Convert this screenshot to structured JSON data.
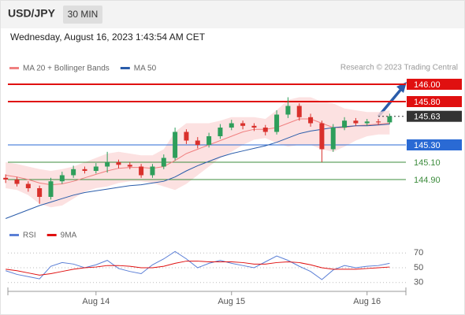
{
  "header": {
    "symbol": "USD/JPY",
    "timeframe": "30 MIN",
    "timestamp": "Wednesday, August 16, 2023 1:43:54 AM CET",
    "source": "Research © 2023 Trading Central"
  },
  "chart_data": [
    {
      "type": "candlestick",
      "open": [
        144.92,
        144.9,
        144.85,
        144.8,
        144.7,
        144.88,
        144.95,
        145.02,
        145.0,
        145.05,
        145.1,
        145.07,
        145.05,
        144.95,
        145.05,
        145.15,
        145.45,
        145.35,
        145.3,
        145.4,
        145.5,
        145.55,
        145.52,
        145.5,
        145.45,
        145.65,
        145.75,
        145.62,
        145.55,
        145.25,
        145.5,
        145.58,
        145.55,
        145.57,
        145.56
      ],
      "high": [
        144.96,
        144.93,
        144.88,
        144.83,
        144.92,
        144.99,
        145.06,
        145.05,
        145.09,
        145.22,
        145.13,
        145.1,
        145.08,
        145.08,
        145.19,
        145.5,
        145.48,
        145.39,
        145.44,
        145.54,
        145.59,
        145.58,
        145.55,
        145.53,
        145.7,
        145.85,
        145.78,
        145.66,
        145.58,
        145.54,
        145.62,
        145.61,
        145.6,
        145.6,
        145.66
      ],
      "low": [
        144.86,
        144.82,
        144.76,
        144.62,
        144.67,
        144.85,
        144.92,
        144.97,
        144.97,
        144.98,
        145.03,
        145.02,
        144.92,
        144.92,
        145.02,
        145.12,
        145.31,
        145.26,
        145.27,
        145.37,
        145.47,
        145.48,
        145.46,
        145.41,
        145.42,
        145.61,
        145.58,
        145.51,
        145.1,
        145.22,
        145.47,
        145.52,
        145.52,
        145.53,
        145.54
      ],
      "close": [
        144.9,
        144.85,
        144.8,
        144.7,
        144.88,
        144.95,
        145.02,
        145.0,
        145.05,
        145.1,
        145.07,
        145.05,
        144.95,
        145.05,
        145.15,
        145.45,
        145.35,
        145.3,
        145.4,
        145.5,
        145.55,
        145.52,
        145.5,
        145.45,
        145.65,
        145.75,
        145.62,
        145.55,
        145.25,
        145.5,
        145.58,
        145.55,
        145.57,
        145.56,
        145.63
      ],
      "up_color": "#2e9e5b",
      "down_color": "#d9302c",
      "series": [
        {
          "name": "MA 20 + Bollinger Bands",
          "color": "#f08080",
          "band_color": "#fbdada",
          "values": [
            144.95,
            144.93,
            144.9,
            144.86,
            144.84,
            144.85,
            144.88,
            144.92,
            144.96,
            145.0,
            145.03,
            145.04,
            145.04,
            145.03,
            145.05,
            145.12,
            145.2,
            145.25,
            145.3,
            145.35,
            145.4,
            145.45,
            145.48,
            145.48,
            145.5,
            145.55,
            145.6,
            145.6,
            145.55,
            145.5,
            145.5,
            145.52,
            145.53,
            145.54,
            145.55
          ],
          "upper": [
            145.1,
            145.08,
            145.05,
            145.02,
            145.0,
            145.02,
            145.05,
            145.1,
            145.15,
            145.2,
            145.22,
            145.2,
            145.18,
            145.18,
            145.25,
            145.45,
            145.55,
            145.55,
            145.55,
            145.58,
            145.62,
            145.62,
            145.62,
            145.6,
            145.7,
            145.82,
            145.85,
            145.85,
            145.8,
            145.78,
            145.72,
            145.7,
            145.68,
            145.68,
            145.7
          ],
          "lower": [
            144.8,
            144.78,
            144.72,
            144.62,
            144.58,
            144.6,
            144.68,
            144.76,
            144.8,
            144.82,
            144.86,
            144.88,
            144.88,
            144.86,
            144.82,
            144.78,
            144.85,
            144.95,
            145.05,
            145.15,
            145.22,
            145.3,
            145.36,
            145.38,
            145.32,
            145.28,
            145.3,
            145.3,
            145.25,
            145.22,
            145.28,
            145.35,
            145.4,
            145.42,
            145.42
          ]
        },
        {
          "name": "MA 50",
          "color": "#2a5caa",
          "values": [
            144.45,
            144.5,
            144.55,
            144.6,
            144.64,
            144.68,
            144.72,
            144.75,
            144.77,
            144.79,
            144.81,
            144.83,
            144.84,
            144.86,
            144.88,
            144.93,
            145.0,
            145.06,
            145.11,
            145.16,
            145.2,
            145.23,
            145.26,
            145.29,
            145.33,
            145.38,
            145.43,
            145.46,
            145.48,
            145.5,
            145.51,
            145.52,
            145.52,
            145.53,
            145.54
          ]
        }
      ],
      "levels": [
        {
          "value": 146,
          "label": "146.00"
        },
        {
          "value": 145.8,
          "label": "145.80"
        },
        145.63,
        {
          "value": 145.3,
          "label": "145.30"
        },
        {
          "value": 145.1,
          "label": "145.10"
        },
        {
          "value": 144.9,
          "label": "144.90"
        }
      ],
      "level_colors": [
        "#e01010",
        "#e01010",
        "#333333",
        "#2a6ad4",
        "#3d8c3d",
        "#3d8c3d"
      ],
      "level_boxed": [
        true,
        true,
        true,
        true,
        false,
        false
      ],
      "level_dashed": [
        false,
        false,
        true,
        false,
        false,
        false
      ],
      "ylim": [
        144.4,
        146.1
      ]
    },
    {
      "type": "line",
      "categories": [
        null,
        null,
        null,
        null,
        null,
        null,
        null,
        null,
        "Aug 14",
        null,
        null,
        null,
        null,
        null,
        null,
        null,
        null,
        null,
        null,
        null,
        "Aug 15",
        null,
        null,
        null,
        null,
        null,
        null,
        null,
        null,
        null,
        null,
        null,
        "Aug 16",
        null,
        null
      ],
      "series": [
        {
          "name": "RSI",
          "color": "#5b7fd6",
          "values": [
            46,
            41,
            38,
            35,
            52,
            57,
            55,
            50,
            54,
            60,
            49,
            45,
            42,
            54,
            62,
            72,
            62,
            50,
            56,
            60,
            56,
            53,
            50,
            58,
            66,
            60,
            52,
            45,
            34,
            47,
            53,
            50,
            52,
            53,
            56
          ]
        },
        {
          "name": "9MA",
          "color": "#e01010",
          "values": [
            48,
            46,
            43,
            40,
            42,
            45,
            48,
            50,
            51,
            53,
            53,
            52,
            50,
            50,
            52,
            56,
            59,
            59,
            58,
            58,
            58,
            57,
            55,
            55,
            57,
            58,
            57,
            54,
            50,
            48,
            48,
            48,
            49,
            50,
            51
          ]
        }
      ],
      "ylim": [
        18,
        82
      ],
      "yticks": [
        30,
        50,
        70
      ],
      "grid": true
    }
  ]
}
